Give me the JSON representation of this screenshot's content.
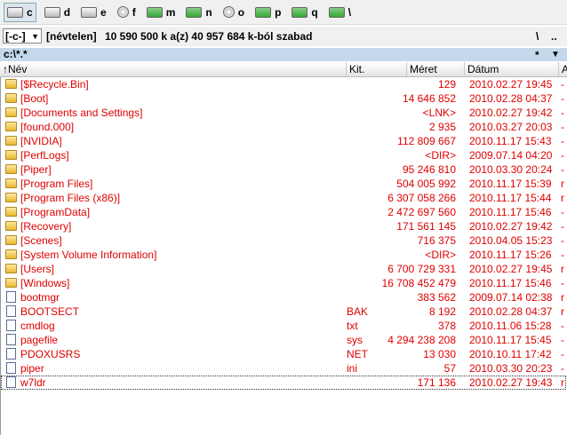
{
  "drive_bar": {
    "drives": [
      "c",
      "d",
      "e",
      "f",
      "m",
      "n",
      "o",
      "p",
      "q",
      "\\"
    ]
  },
  "path_bar": {
    "drive": "[-c-]",
    "label": "[névtelen]",
    "free_space": "10 590 500 k a(z) 40 957 684 k-ból szabad",
    "root_button": "\\",
    "up_button": ".."
  },
  "path_line": {
    "path": "c:\\*.*",
    "filter": "*",
    "menu": "▼"
  },
  "table": {
    "columns": [
      "↑Név",
      "Kit.",
      "Méret",
      "Dátum",
      "A"
    ],
    "rows": [
      [
        "[$Recycle.Bin]",
        "",
        "129",
        "2010.02.27 19:45",
        "-"
      ],
      [
        "[Boot]",
        "",
        "14 646 852",
        "2010.02.28 04:37",
        "-"
      ],
      [
        "[Documents and Settings]",
        "",
        "<LNK>",
        "2010.02.27 19:42",
        "-"
      ],
      [
        "[found.000]",
        "",
        "2 935",
        "2010.03.27 20:03",
        "-"
      ],
      [
        "[NVIDIA]",
        "",
        "112 809 667",
        "2010.11.17 15:43",
        "-"
      ],
      [
        "[PerfLogs]",
        "",
        "<DIR>",
        "2009.07.14 04:20",
        "-"
      ],
      [
        "[Piper]",
        "",
        "95 246 810",
        "2010.03.30 20:24",
        "-"
      ],
      [
        "[Program Files]",
        "",
        "504 005 992",
        "2010.11.17 15:39",
        "r"
      ],
      [
        "[Program Files (x86)]",
        "",
        "6 307 058 266",
        "2010.11.17 15:44",
        "r"
      ],
      [
        "[ProgramData]",
        "",
        "2 472 697 560",
        "2010.11.17 15:46",
        "-"
      ],
      [
        "[Recovery]",
        "",
        "171 561 145",
        "2010.02.27 19:42",
        "-"
      ],
      [
        "[Scenes]",
        "",
        "716 375",
        "2010.04.05 15:23",
        "-"
      ],
      [
        "[System Volume Information]",
        "",
        "<DIR>",
        "2010.11.17 15:26",
        "-"
      ],
      [
        "[Users]",
        "",
        "6 700 729 331",
        "2010.02.27 19:45",
        "r"
      ],
      [
        "[Windows]",
        "",
        "16 708 452 479",
        "2010.11.17 15:46",
        "-"
      ],
      [
        "bootmgr",
        "",
        "383 562",
        "2009.07.14 02:38",
        "r"
      ],
      [
        "BOOTSECT",
        "BAK",
        "8 192",
        "2010.02.28 04:37",
        "r"
      ],
      [
        "cmdlog",
        "txt",
        "378",
        "2010.11.06 15:28",
        "-"
      ],
      [
        "pagefile",
        "sys",
        "4 294 238 208",
        "2010.11.17 15:45",
        "-"
      ],
      [
        "PDOXUSRS",
        "NET",
        "13 030",
        "2010.10.11 17:42",
        "-"
      ],
      [
        "piper",
        "ini",
        "57",
        "2010.03.30 20:23",
        "-"
      ],
      [
        "w7ldr",
        "",
        "171 136",
        "2010.02.27 19:43",
        "r"
      ]
    ]
  }
}
